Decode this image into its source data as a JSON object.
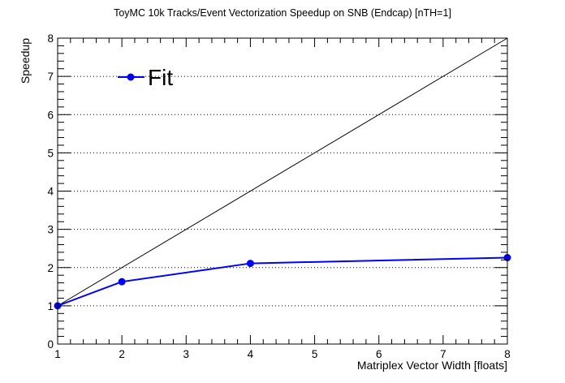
{
  "chart_data": {
    "type": "line",
    "title": "ToyMC 10k Tracks/Event Vectorization Speedup on SNB (Endcap) [nTH=1]",
    "xlabel": "Matriplex Vector Width [floats]",
    "ylabel": "Speedup",
    "xlim": [
      1,
      8
    ],
    "ylim": [
      0,
      8
    ],
    "xticks": [
      1,
      2,
      3,
      4,
      5,
      6,
      7,
      8
    ],
    "yticks": [
      0,
      1,
      2,
      3,
      4,
      5,
      6,
      7,
      8
    ],
    "grid": "horizontal-dotted",
    "legend_position": "top-left",
    "series": [
      {
        "name": "Fit",
        "color": "#0000ff",
        "marker": "circle",
        "x": [
          1,
          2,
          4,
          8
        ],
        "y": [
          1.0,
          1.63,
          2.11,
          2.26
        ]
      }
    ],
    "reference_line": {
      "color": "#000000",
      "x": [
        1,
        8
      ],
      "y": [
        1,
        8
      ]
    }
  }
}
